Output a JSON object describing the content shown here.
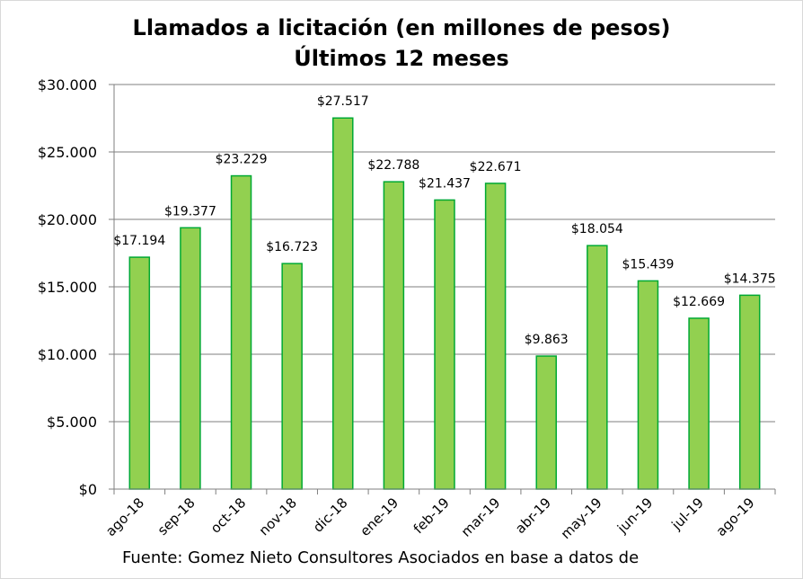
{
  "chart_data": {
    "type": "bar",
    "title": "Llamados a licitación (en millones de pesos)",
    "subtitle": "Últimos 12 meses",
    "categories": [
      "ago-18",
      "sep-18",
      "oct-18",
      "nov-18",
      "dic-18",
      "ene-19",
      "feb-19",
      "mar-19",
      "abr-19",
      "may-19",
      "jun-19",
      "jul-19",
      "ago-19"
    ],
    "values": [
      17194,
      19377,
      23229,
      16723,
      27517,
      22788,
      21437,
      22671,
      9863,
      18054,
      15439,
      12669,
      14375
    ],
    "data_labels": [
      "$17.194",
      "$19.377",
      "$23.229",
      "$16.723",
      "$27.517",
      "$22.788",
      "$21.437",
      "$22.671",
      "$9.863",
      "$18.054",
      "$15.439",
      "$12.669",
      "$14.375"
    ],
    "y_ticks": [
      0,
      5000,
      10000,
      15000,
      20000,
      25000,
      30000
    ],
    "y_tick_labels": [
      "$0",
      "$5.000",
      "$10.000",
      "$15.000",
      "$20.000",
      "$25.000",
      "$30.000"
    ],
    "ylim": [
      0,
      30000
    ],
    "grid": true,
    "legend": "none",
    "colors": {
      "bar_fill": "#92d050",
      "bar_stroke": "#00a933",
      "grid": "#7f7f7f"
    }
  },
  "footer": {
    "source": "Fuente: Gomez Nieto Consultores Asociados en base a datos de"
  }
}
